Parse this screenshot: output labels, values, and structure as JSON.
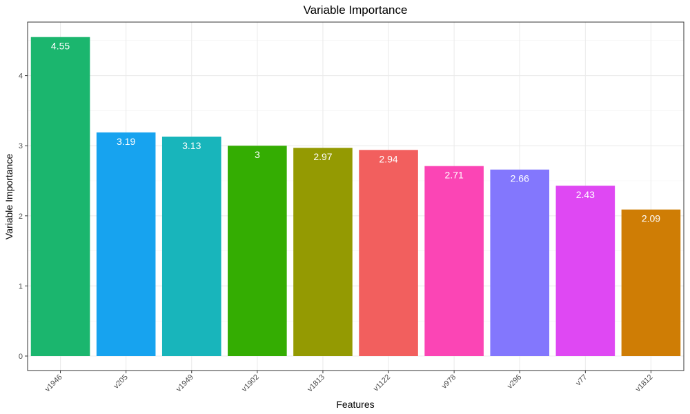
{
  "chart_data": {
    "type": "bar",
    "title": "Variable Importance",
    "xlabel": "Features",
    "ylabel": "Variable Importance",
    "categories": [
      "v1946",
      "v205",
      "v1949",
      "v1902",
      "v1813",
      "v1122",
      "v978",
      "v296",
      "v77",
      "v1812"
    ],
    "values": [
      4.55,
      3.19,
      3.13,
      3,
      2.97,
      2.94,
      2.71,
      2.66,
      2.43,
      2.09
    ],
    "value_labels": [
      "4.55",
      "3.19",
      "3.13",
      "3",
      "2.97",
      "2.94",
      "2.71",
      "2.66",
      "2.43",
      "2.09"
    ],
    "colors": [
      "#1bb66e",
      "#17a3ef",
      "#18b5bb",
      "#34ad02",
      "#949a02",
      "#f25f5e",
      "#fb45b5",
      "#8377fd",
      "#df48f3",
      "#cf7d05"
    ],
    "y_ticks": [
      0,
      1,
      2,
      3,
      4
    ],
    "ylim": [
      0,
      4.76
    ],
    "grid": true,
    "legend": "none"
  }
}
